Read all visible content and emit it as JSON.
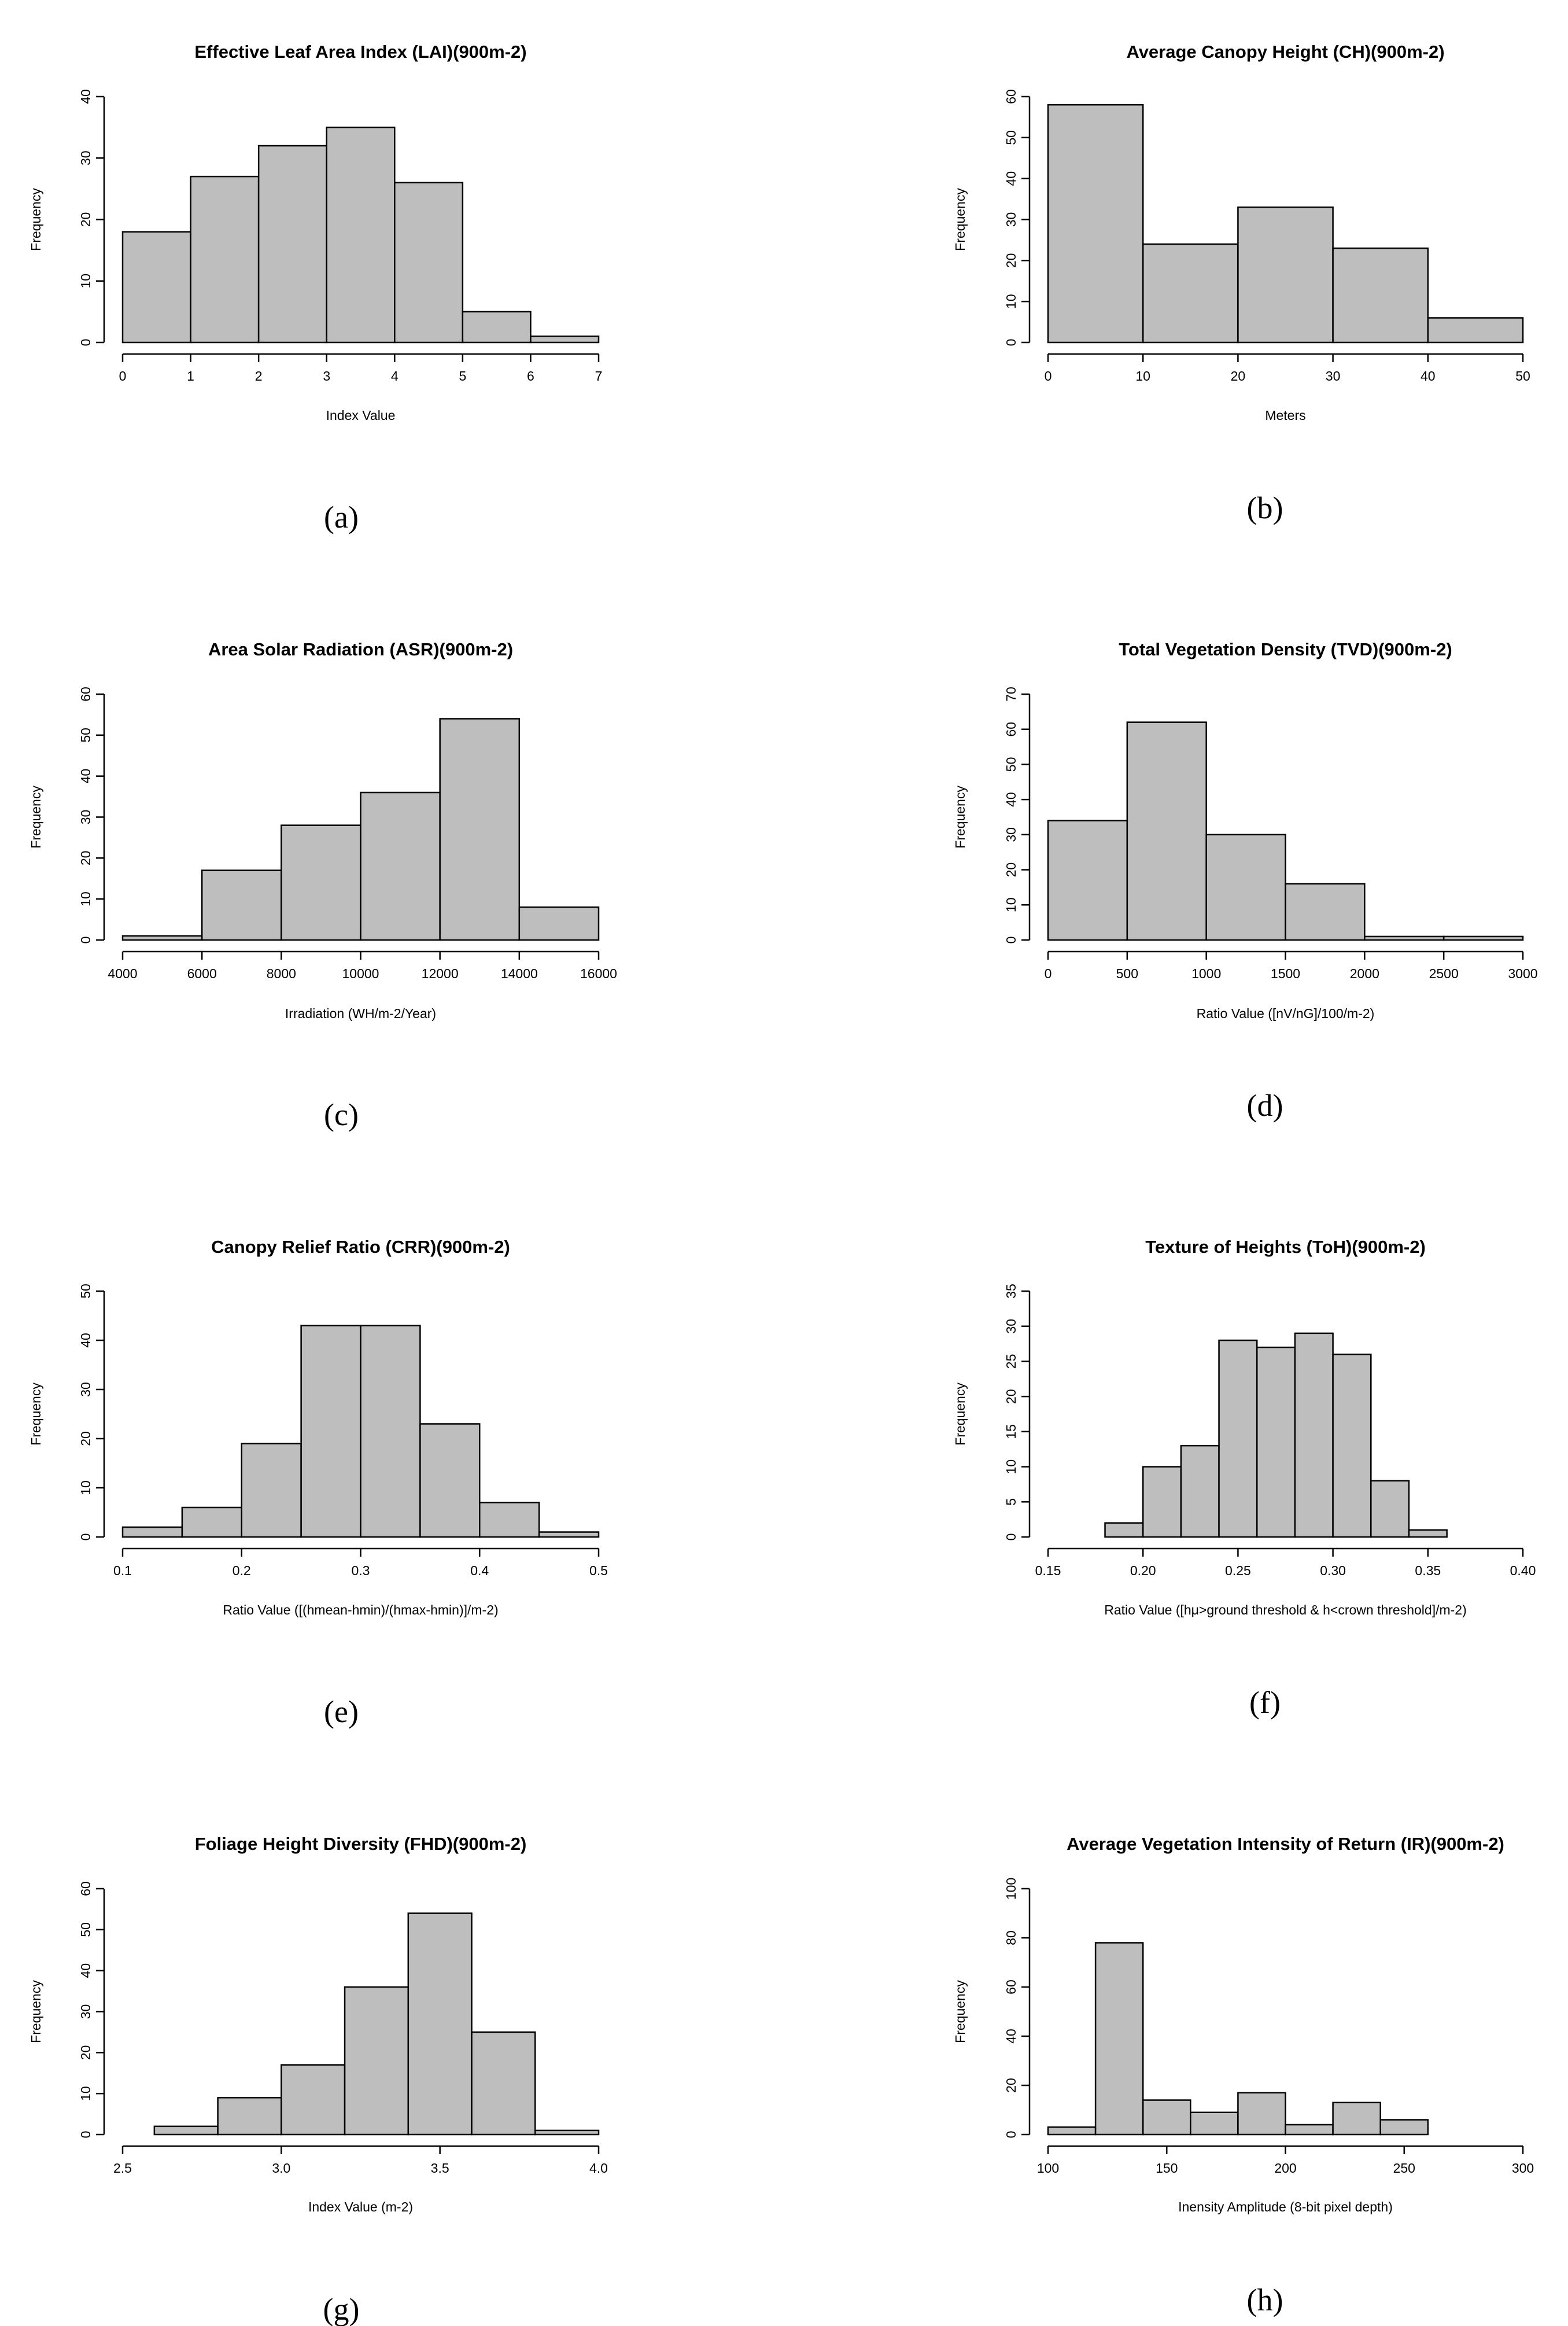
{
  "chart_data": [
    {
      "type": "histogram",
      "title": "Effective Leaf Area Index (LAI)(900m-2)",
      "xlabel": "Index Value",
      "ylabel": "Frequency",
      "caption": "(a)",
      "bin_edges": [
        0,
        1,
        2,
        3,
        4,
        5,
        6,
        7
      ],
      "values": [
        18,
        27,
        32,
        35,
        26,
        5,
        1
      ],
      "xticks": [
        0,
        1,
        2,
        3,
        4,
        5,
        6,
        7
      ],
      "xtick_labels": [
        "0",
        "1",
        "2",
        "3",
        "4",
        "5",
        "6",
        "7"
      ],
      "xlim": [
        0,
        7
      ],
      "yticks": [
        0,
        10,
        20,
        30,
        40
      ],
      "ytick_labels": [
        "0",
        "10",
        "20",
        "30",
        "40"
      ],
      "ylim": [
        0,
        40
      ]
    },
    {
      "type": "histogram",
      "title": "Average Canopy Height (CH)(900m-2)",
      "xlabel": "Meters",
      "ylabel": "Frequency",
      "caption": "(b)",
      "bin_edges": [
        0,
        10,
        20,
        30,
        40,
        50
      ],
      "values": [
        58,
        24,
        33,
        23,
        6
      ],
      "xticks": [
        0,
        10,
        20,
        30,
        40,
        50
      ],
      "xtick_labels": [
        "0",
        "10",
        "20",
        "30",
        "40",
        "50"
      ],
      "xlim": [
        0,
        50
      ],
      "yticks": [
        0,
        10,
        20,
        30,
        40,
        50,
        60
      ],
      "ytick_labels": [
        "0",
        "10",
        "20",
        "30",
        "40",
        "50",
        "60"
      ],
      "ylim": [
        0,
        60
      ]
    },
    {
      "type": "histogram",
      "title": "Area Solar Radiation (ASR)(900m-2)",
      "xlabel": "Irradiation (WH/m-2/Year)",
      "ylabel": "Frequency",
      "caption": "(c)",
      "bin_edges": [
        4000,
        6000,
        8000,
        10000,
        12000,
        14000,
        16000
      ],
      "values": [
        1,
        17,
        28,
        36,
        54,
        8
      ],
      "xticks": [
        4000,
        6000,
        8000,
        10000,
        12000,
        14000,
        16000
      ],
      "xtick_labels": [
        "4000",
        "6000",
        "8000",
        "10000",
        "12000",
        "14000",
        "16000"
      ],
      "xlim": [
        4000,
        16000
      ],
      "yticks": [
        0,
        10,
        20,
        30,
        40,
        50,
        60
      ],
      "ytick_labels": [
        "0",
        "10",
        "20",
        "30",
        "40",
        "50",
        "60"
      ],
      "ylim": [
        0,
        60
      ]
    },
    {
      "type": "histogram",
      "title": "Total Vegetation Density (TVD)(900m-2)",
      "xlabel": "Ratio Value ([nV/nG]/100/m-2)",
      "ylabel": "Frequency",
      "caption": "(d)",
      "bin_edges": [
        0,
        500,
        1000,
        1500,
        2000,
        2500,
        3000
      ],
      "values": [
        34,
        62,
        30,
        16,
        1,
        1
      ],
      "xticks": [
        0,
        500,
        1000,
        1500,
        2000,
        2500,
        3000
      ],
      "xtick_labels": [
        "0",
        "500",
        "1000",
        "1500",
        "2000",
        "2500",
        "3000"
      ],
      "xlim": [
        0,
        3000
      ],
      "yticks": [
        0,
        10,
        20,
        30,
        40,
        50,
        60,
        70
      ],
      "ytick_labels": [
        "0",
        "10",
        "20",
        "30",
        "40",
        "50",
        "60",
        "70"
      ],
      "ylim": [
        0,
        70
      ]
    },
    {
      "type": "histogram",
      "title": "Canopy Relief Ratio (CRR)(900m-2)",
      "xlabel": "Ratio Value ([(hmean-hmin)/(hmax-hmin)]/m-2)",
      "ylabel": "Frequency",
      "caption": "(e)",
      "bin_edges": [
        0.1,
        0.15,
        0.2,
        0.25,
        0.3,
        0.35,
        0.4,
        0.45,
        0.5
      ],
      "values": [
        2,
        6,
        19,
        43,
        43,
        23,
        7,
        1
      ],
      "xticks": [
        0.1,
        0.2,
        0.3,
        0.4,
        0.5
      ],
      "xtick_labels": [
        "0.1",
        "0.2",
        "0.3",
        "0.4",
        "0.5"
      ],
      "xlim": [
        0.1,
        0.5
      ],
      "yticks": [
        0,
        10,
        20,
        30,
        40,
        50
      ],
      "ytick_labels": [
        "0",
        "10",
        "20",
        "30",
        "40",
        "50"
      ],
      "ylim": [
        0,
        50
      ]
    },
    {
      "type": "histogram",
      "title": "Texture of Heights (ToH)(900m-2)",
      "xlabel": "Ratio Value ([hμ>ground threshold & h<crown threshold]/m-2)",
      "ylabel": "Frequency",
      "caption": "(f)",
      "bin_edges": [
        0.18,
        0.2,
        0.22,
        0.24,
        0.26,
        0.28,
        0.3,
        0.32,
        0.34,
        0.36
      ],
      "values": [
        2,
        10,
        13,
        28,
        27,
        29,
        26,
        8,
        1
      ],
      "xticks": [
        0.15,
        0.2,
        0.25,
        0.3,
        0.35,
        0.4
      ],
      "xtick_labels": [
        "0.15",
        "0.20",
        "0.25",
        "0.30",
        "0.35",
        "0.40"
      ],
      "xlim": [
        0.15,
        0.4
      ],
      "yticks": [
        0,
        5,
        10,
        15,
        20,
        25,
        30,
        35
      ],
      "ytick_labels": [
        "0",
        "5",
        "10",
        "15",
        "20",
        "25",
        "30",
        "35"
      ],
      "ylim": [
        0,
        35
      ]
    },
    {
      "type": "histogram",
      "title": "Foliage Height Diversity (FHD)(900m-2)",
      "xlabel": "Index Value (m-2)",
      "ylabel": "Frequency",
      "caption": "(g)",
      "bin_edges": [
        2.6,
        2.8,
        3.0,
        3.2,
        3.4,
        3.6,
        3.8,
        4.0
      ],
      "values": [
        2,
        9,
        17,
        36,
        54,
        25,
        1
      ],
      "xticks": [
        2.5,
        3.0,
        3.5,
        4.0
      ],
      "xtick_labels": [
        "2.5",
        "3.0",
        "3.5",
        "4.0"
      ],
      "xlim": [
        2.5,
        4.0
      ],
      "yticks": [
        0,
        10,
        20,
        30,
        40,
        50,
        60
      ],
      "ytick_labels": [
        "0",
        "10",
        "20",
        "30",
        "40",
        "50",
        "60"
      ],
      "ylim": [
        0,
        60
      ]
    },
    {
      "type": "histogram",
      "title": "Average Vegetation Intensity of Return (IR)(900m-2)",
      "xlabel": "Inensity Amplitude (8-bit pixel depth)",
      "ylabel": "Frequency",
      "caption": "(h)",
      "bin_edges": [
        100,
        120,
        140,
        160,
        180,
        200,
        220,
        240,
        260
      ],
      "values": [
        3,
        78,
        14,
        9,
        17,
        4,
        13,
        6
      ],
      "xticks": [
        100,
        150,
        200,
        250,
        300
      ],
      "xtick_labels": [
        "100",
        "150",
        "200",
        "250",
        "300"
      ],
      "xlim": [
        100,
        300
      ],
      "yticks": [
        0,
        20,
        40,
        60,
        80,
        100
      ],
      "ytick_labels": [
        "0",
        "20",
        "40",
        "60",
        "80",
        "100"
      ],
      "ylim": [
        0,
        100
      ]
    }
  ]
}
